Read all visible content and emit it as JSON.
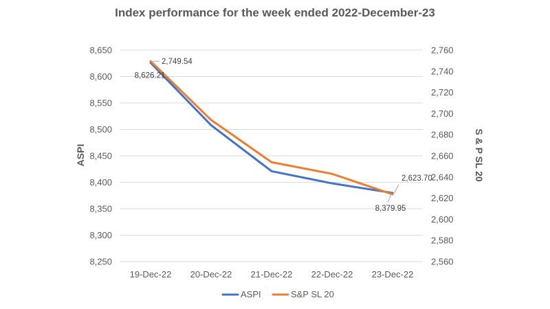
{
  "chart_data": {
    "type": "line",
    "title": "Index performance for the week ended 2022-December-23",
    "categories": [
      "19-Dec-22",
      "20-Dec-22",
      "21-Dec-22",
      "22-Dec-22",
      "23-Dec-22"
    ],
    "y_left": {
      "label": "ASPI",
      "range": [
        8250,
        8650
      ],
      "ticks": [
        "8,250",
        "8,300",
        "8,350",
        "8,400",
        "8,450",
        "8,500",
        "8,550",
        "8,600",
        "8,650"
      ]
    },
    "y_right": {
      "label": "S & P SL 20",
      "range": [
        2560,
        2760
      ],
      "ticks": [
        "2,560",
        "2,580",
        "2,600",
        "2,620",
        "2,640",
        "2,660",
        "2,680",
        "2,700",
        "2,720",
        "2,740",
        "2,760"
      ]
    },
    "series": [
      {
        "name": "ASPI",
        "axis": "left",
        "color": "#4472C4",
        "values": [
          8626.21,
          8508,
          8421,
          8398,
          8379.95
        ],
        "labels": [
          {
            "index": 0,
            "text": "8,626.21"
          },
          {
            "index": 4,
            "text": "8,379.95"
          }
        ]
      },
      {
        "name": "S&P SL 20",
        "axis": "right",
        "color": "#ED7D31",
        "values": [
          2749.54,
          2694,
          2654,
          2643,
          2623.7
        ],
        "labels": [
          {
            "index": 0,
            "text": "2,749.54"
          },
          {
            "index": 4,
            "text": "2,623.70"
          }
        ]
      }
    ],
    "grid": true,
    "legend": "bottom"
  }
}
